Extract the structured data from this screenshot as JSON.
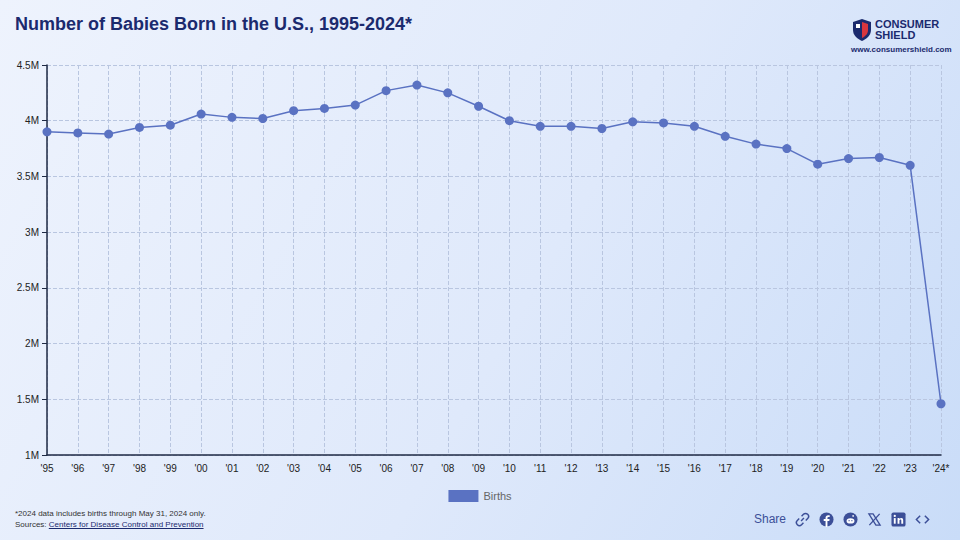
{
  "chart_data": {
    "type": "line",
    "title": "Number of Babies Born in the U.S., 1995-2024*",
    "logo": "CONSUMER SHIELD",
    "website": "www.consumershield.com",
    "footnote": "*2024 data includes births through May 31, 2024 only.",
    "source_label": "Sources:",
    "source": "Centers for Disease Control and Prevention",
    "share": "Share",
    "categories": [
      "'95",
      "'96",
      "'97",
      "'98",
      "'99",
      "'00",
      "'01",
      "'02",
      "'03",
      "'04",
      "'05",
      "'06",
      "'07",
      "'08",
      "'09",
      "'10",
      "'11",
      "'12",
      "'13",
      "'14",
      "'15",
      "'16",
      "'17",
      "'18",
      "'19",
      "'20",
      "'21",
      "'22",
      "'23",
      "'24*"
    ],
    "series": [
      {
        "name": "Births",
        "color": "#5a72c2",
        "marker": "circle",
        "values": [
          3900000,
          3890000,
          3880000,
          3940000,
          3960000,
          4060000,
          4030000,
          4020000,
          4090000,
          4110000,
          4140000,
          4270000,
          4320000,
          4250000,
          4130000,
          4000000,
          3950000,
          3950000,
          3930000,
          3990000,
          3980000,
          3950000,
          3860000,
          3790000,
          3750000,
          3610000,
          3660000,
          3670000,
          3600000,
          1460000
        ]
      }
    ],
    "ylim": [
      1000000,
      4500000
    ],
    "yticks": [
      {
        "value": 1000000,
        "label": "1M"
      },
      {
        "value": 1500000,
        "label": "1.5M"
      },
      {
        "value": 2000000,
        "label": "2M"
      },
      {
        "value": 2500000,
        "label": "2.5M"
      },
      {
        "value": 3000000,
        "label": "3M"
      },
      {
        "value": 3500000,
        "label": "3.5M"
      },
      {
        "value": 4000000,
        "label": "4M"
      },
      {
        "value": 4500000,
        "label": "4.5M"
      }
    ],
    "grid": true,
    "legend": "bottom"
  }
}
